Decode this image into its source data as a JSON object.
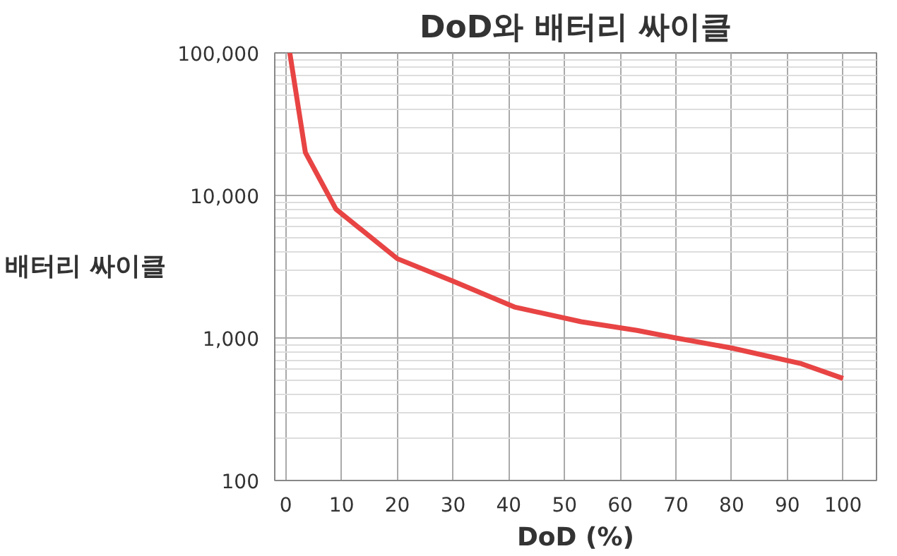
{
  "chart_data": {
    "type": "line",
    "title": "DoD와 배터리 싸이클",
    "xlabel": "DoD (%)",
    "ylabel": "배터리 싸이클",
    "x": [
      0.7,
      3.5,
      9,
      20,
      30,
      41,
      53,
      63,
      70,
      80,
      92.5,
      100
    ],
    "series": [
      {
        "color": "#e84444",
        "values": [
          100000,
          20000,
          8000,
          3600,
          2500,
          1650,
          1300,
          1130,
          1000,
          850,
          660,
          520
        ]
      }
    ],
    "xlim": [
      -2,
      106
    ],
    "xticks": [
      0,
      10,
      20,
      30,
      40,
      50,
      60,
      70,
      80,
      90,
      100
    ],
    "ylim": [
      100,
      100000
    ],
    "yticks": [
      {
        "value": 100,
        "label": "100"
      },
      {
        "value": 1000,
        "label": "1,000"
      },
      {
        "value": 10000,
        "label": "10,000"
      },
      {
        "value": 100000,
        "label": "100,000"
      }
    ],
    "log": "y",
    "grid": true,
    "marker": "none",
    "line_style": "solid"
  }
}
